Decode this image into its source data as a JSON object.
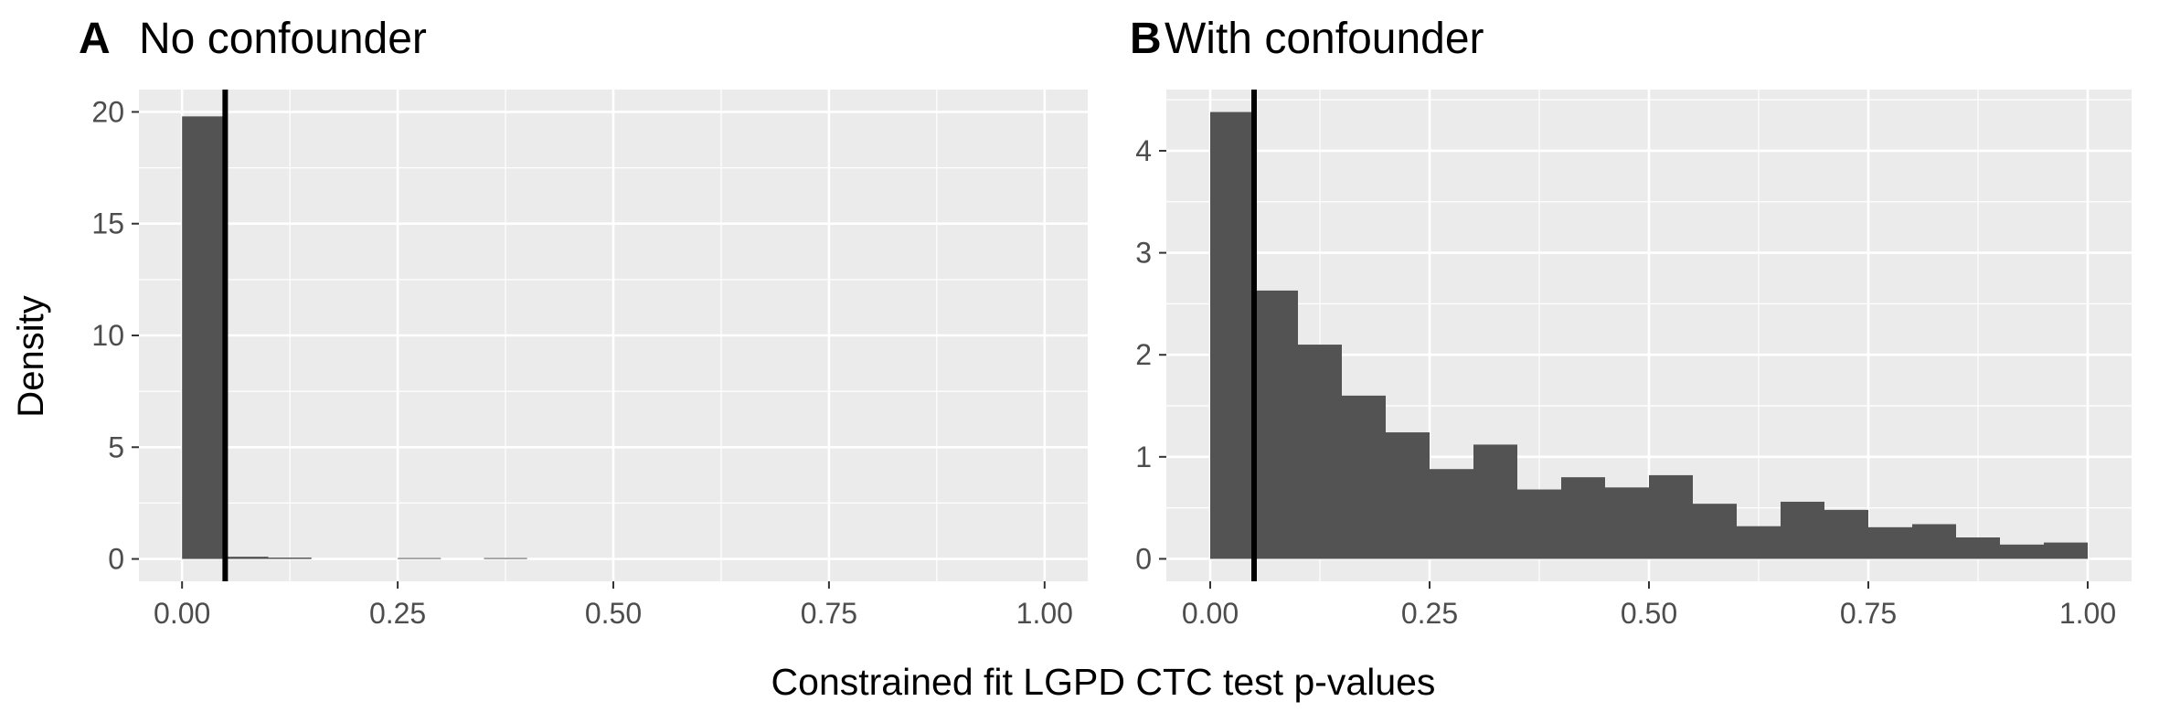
{
  "figure": {
    "shared_xlabel": "Constrained fit LGPD CTC test p-values",
    "shared_ylabel": "Density"
  },
  "chart_data": [
    {
      "type": "bar",
      "panel_letter": "A",
      "title": "No confounder",
      "xlabel": "Constrained fit LGPD CTC test p-values",
      "ylabel": "Density",
      "xlim": [
        -0.05,
        1.05
      ],
      "ylim": [
        -1.0,
        21.0
      ],
      "x_ticks": [
        0,
        0.25,
        0.5,
        0.75,
        1
      ],
      "x_tick_labels": [
        "0.00",
        "0.25",
        "0.50",
        "0.75",
        "1.00"
      ],
      "y_ticks": [
        0,
        5,
        10,
        15,
        20
      ],
      "y_tick_labels": [
        "0",
        "5",
        "10",
        "15",
        "20"
      ],
      "bin_width": 0.05,
      "bins_start": [
        0,
        0.05,
        0.1,
        0.15,
        0.2,
        0.25,
        0.3,
        0.35,
        0.4,
        0.45,
        0.5,
        0.55,
        0.6,
        0.65,
        0.7,
        0.75,
        0.8,
        0.85,
        0.9,
        0.95
      ],
      "values": [
        19.8,
        0.1,
        0.06,
        0,
        0,
        0.04,
        0,
        0.04,
        0,
        0,
        0,
        0,
        0,
        0,
        0,
        0,
        0,
        0,
        0,
        0
      ],
      "reference_line_x": 0.05,
      "grid": true,
      "bar_color": "#545354",
      "panel_bg": "#ebebeb",
      "grid_color": "#ffffff",
      "reference_line_color": "#000000"
    },
    {
      "type": "bar",
      "panel_letter": "B",
      "title": "With confounder",
      "xlabel": "Constrained fit LGPD CTC test p-values",
      "ylabel": "Density",
      "xlim": [
        -0.05,
        1.05
      ],
      "ylim": [
        -0.22,
        4.6
      ],
      "x_ticks": [
        0,
        0.25,
        0.5,
        0.75,
        1
      ],
      "x_tick_labels": [
        "0.00",
        "0.25",
        "0.50",
        "0.75",
        "1.00"
      ],
      "y_ticks": [
        0,
        1,
        2,
        3,
        4
      ],
      "y_tick_labels": [
        "0",
        "1",
        "2",
        "3",
        "4"
      ],
      "bin_width": 0.05,
      "bins_start": [
        0,
        0.05,
        0.1,
        0.15,
        0.2,
        0.25,
        0.3,
        0.35,
        0.4,
        0.45,
        0.5,
        0.55,
        0.6,
        0.65,
        0.7,
        0.75,
        0.8,
        0.85,
        0.9,
        0.95
      ],
      "values": [
        4.38,
        2.63,
        2.1,
        1.6,
        1.24,
        0.88,
        1.12,
        0.68,
        0.8,
        0.7,
        0.82,
        0.54,
        0.32,
        0.56,
        0.48,
        0.31,
        0.34,
        0.21,
        0.14,
        0.16
      ],
      "reference_line_x": 0.05,
      "grid": true,
      "bar_color": "#545354",
      "panel_bg": "#ebebeb",
      "grid_color": "#ffffff",
      "reference_line_color": "#000000"
    }
  ]
}
